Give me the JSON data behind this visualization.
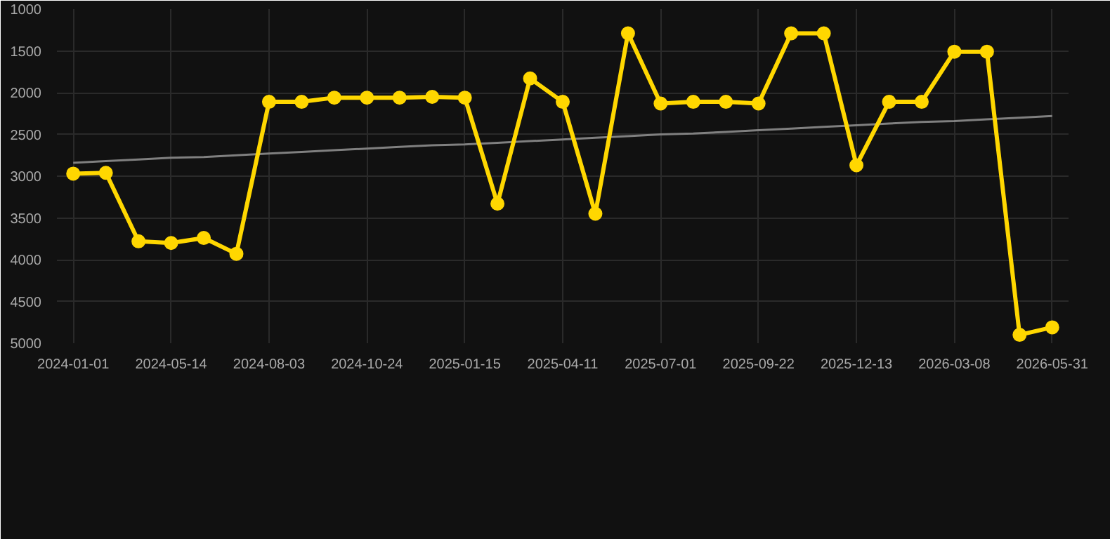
{
  "chart_data": {
    "type": "line",
    "categories": [
      "2024-01-01",
      null,
      null,
      "2024-05-14",
      null,
      null,
      "2024-08-03",
      null,
      null,
      "2024-10-24",
      null,
      null,
      "2025-01-15",
      null,
      null,
      "2025-04-11",
      null,
      null,
      "2025-07-01",
      null,
      null,
      "2025-09-22",
      null,
      null,
      "2025-12-13",
      null,
      null,
      "2026-03-08",
      null,
      null,
      "2026-05-31"
    ],
    "series": [
      {
        "color": "#ffd700",
        "marker": "circle",
        "values": [
          2970,
          2960,
          3780,
          3800,
          3740,
          3930,
          2110,
          2110,
          2060,
          2060,
          2060,
          2050,
          2060,
          3330,
          1830,
          2110,
          3450,
          1290,
          2130,
          2110,
          2110,
          2130,
          1290,
          1290,
          2870,
          2110,
          2110,
          1510,
          1510,
          4900,
          4810
        ]
      },
      {
        "type": "line",
        "color": "#808080",
        "marker": "none",
        "values": [
          2840,
          2820,
          2800,
          2780,
          2770,
          2750,
          2730,
          2710,
          2690,
          2670,
          2650,
          2630,
          2620,
          2600,
          2580,
          2560,
          2540,
          2520,
          2500,
          2490,
          2470,
          2450,
          2430,
          2410,
          2390,
          2370,
          2350,
          2340,
          2320,
          2300,
          2280
        ]
      }
    ],
    "ylim": [
      5000,
      1000
    ],
    "yticks": [
      1000,
      1500,
      2000,
      2500,
      3000,
      3500,
      4000,
      4500,
      5000
    ],
    "grid": true
  }
}
